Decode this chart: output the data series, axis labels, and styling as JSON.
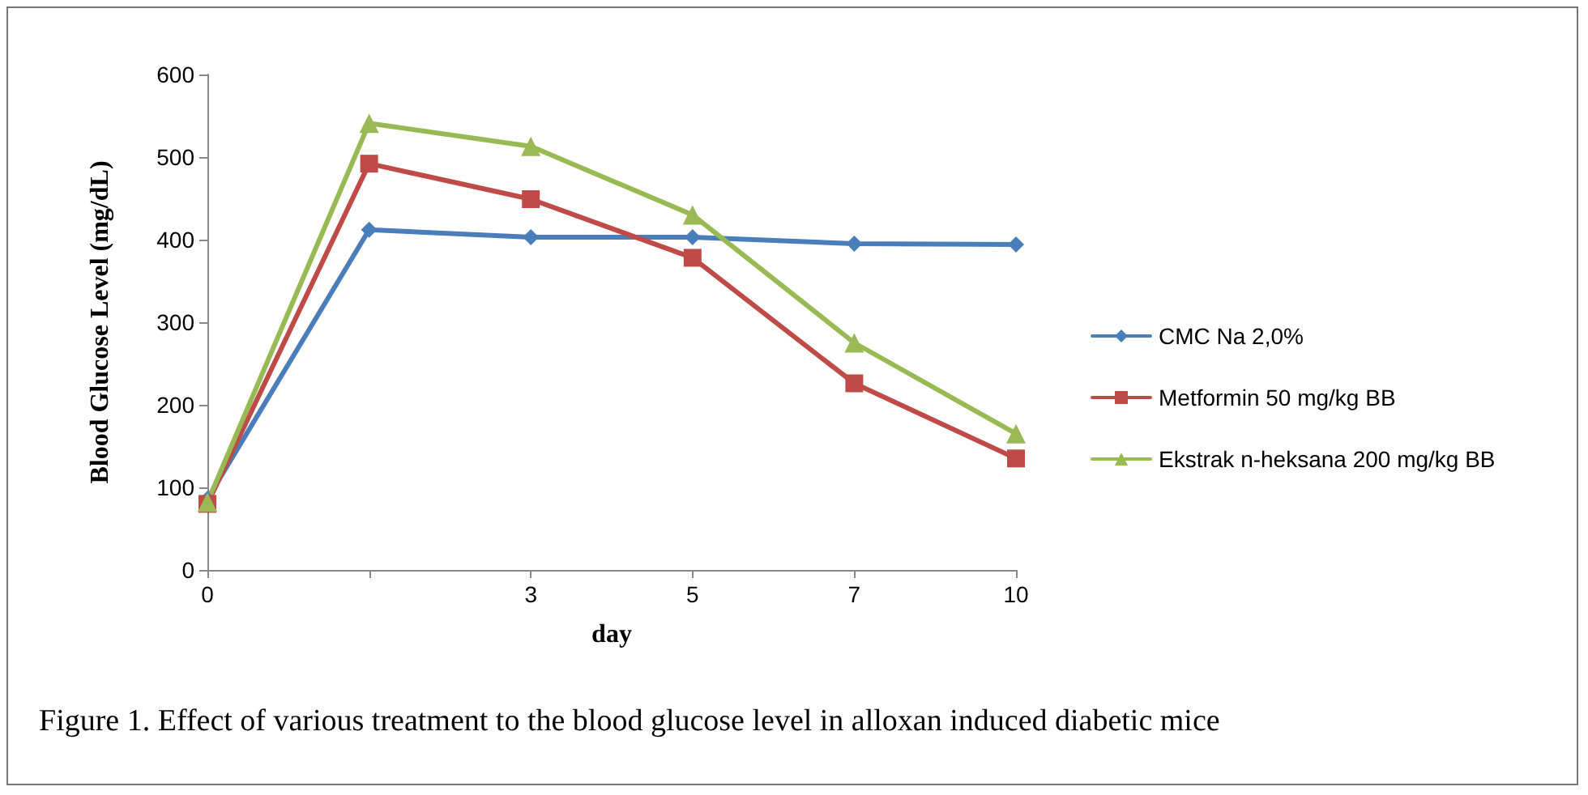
{
  "chart_data": {
    "type": "line",
    "xlabel": "day",
    "ylabel": "Blood Glucose Level (mg/dL)",
    "categories": [
      "0",
      null,
      "3",
      "5",
      "7",
      "10"
    ],
    "series": [
      {
        "name": "CMC Na 2,0%",
        "color": "#4a7ebb",
        "marker": "diamond",
        "values": [
          86,
          412,
          403,
          403,
          395,
          394
        ]
      },
      {
        "name": "Metformin 50 mg/kg BB",
        "color": "#be4b48",
        "marker": "square",
        "values": [
          80,
          492,
          449,
          378,
          226,
          135
        ]
      },
      {
        "name": "Ekstrak n-heksana 200 mg/kg BB",
        "color": "#98b954",
        "marker": "triangle",
        "values": [
          82,
          541,
          513,
          430,
          275,
          165
        ]
      }
    ],
    "ylim": [
      0,
      600
    ],
    "yticks": [
      0,
      100,
      200,
      300,
      400,
      500,
      600
    ],
    "grid": false,
    "legend": "right",
    "annotations": [
      "Figure 1. Effect of various treatment to the blood glucose level in alloxan induced diabetic mice"
    ]
  }
}
